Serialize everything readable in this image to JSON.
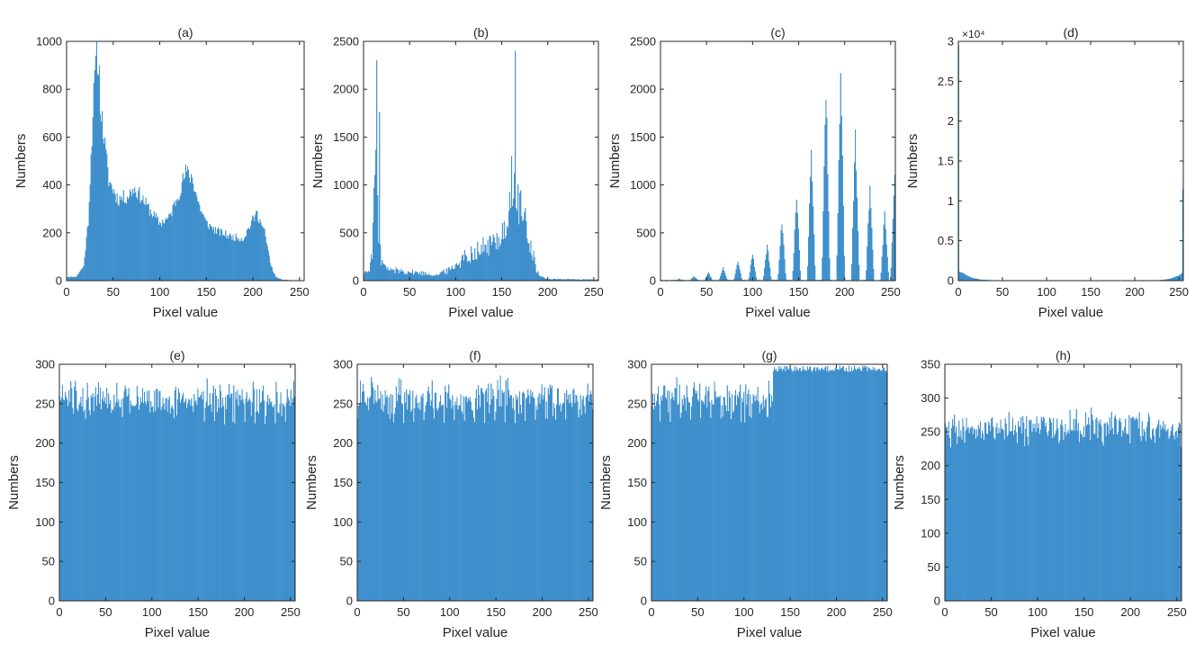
{
  "figure": {
    "series_color": "#2E86C8",
    "axis_color": "#262626",
    "background": "#ffffff"
  },
  "chart_data": [
    {
      "id": "a",
      "type": "bar",
      "title": "(a)",
      "xlabel": "Pixel value",
      "ylabel": "Numbers",
      "xlim": [
        0,
        255
      ],
      "ylim": [
        0,
        1000
      ],
      "xticks": [
        0,
        50,
        100,
        150,
        200,
        250
      ],
      "xtick_labels": [
        "0",
        "50",
        "100",
        "150",
        "200",
        "250"
      ],
      "yticks": [
        0,
        200,
        400,
        600,
        800,
        1000
      ],
      "ytick_labels": [
        "0",
        "200",
        "400",
        "600",
        "800",
        "1000"
      ],
      "exponent_label": "",
      "profile": [
        [
          0,
          15
        ],
        [
          10,
          15
        ],
        [
          18,
          60
        ],
        [
          23,
          250
        ],
        [
          28,
          700
        ],
        [
          31,
          900
        ],
        [
          33,
          940
        ],
        [
          37,
          700
        ],
        [
          45,
          420
        ],
        [
          55,
          340
        ],
        [
          65,
          350
        ],
        [
          72,
          385
        ],
        [
          80,
          350
        ],
        [
          90,
          290
        ],
        [
          100,
          240
        ],
        [
          110,
          260
        ],
        [
          120,
          360
        ],
        [
          128,
          450
        ],
        [
          135,
          430
        ],
        [
          142,
          320
        ],
        [
          150,
          240
        ],
        [
          160,
          210
        ],
        [
          175,
          185
        ],
        [
          190,
          175
        ],
        [
          200,
          250
        ],
        [
          205,
          280
        ],
        [
          213,
          200
        ],
        [
          220,
          60
        ],
        [
          225,
          15
        ],
        [
          232,
          3
        ],
        [
          255,
          0
        ]
      ],
      "spikes": [
        [
          31,
          940
        ],
        [
          35,
          900
        ],
        [
          129,
          455
        ],
        [
          205,
          290
        ]
      ],
      "noise": 0.09
    },
    {
      "id": "b",
      "type": "bar",
      "title": "(b)",
      "xlabel": "Pixel value",
      "ylabel": "Numbers",
      "xlim": [
        0,
        255
      ],
      "ylim": [
        0,
        2500
      ],
      "xticks": [
        0,
        50,
        100,
        150,
        200,
        250
      ],
      "xtick_labels": [
        "0",
        "50",
        "100",
        "150",
        "200",
        "250"
      ],
      "yticks": [
        0,
        500,
        1000,
        1500,
        2000,
        2500
      ],
      "ytick_labels": [
        "0",
        "500",
        "1000",
        "1500",
        "2000",
        "2500"
      ],
      "exponent_label": "",
      "profile": [
        [
          0,
          80
        ],
        [
          5,
          100
        ],
        [
          9,
          250
        ],
        [
          11,
          900
        ],
        [
          13,
          1300
        ],
        [
          15,
          700
        ],
        [
          19,
          200
        ],
        [
          25,
          120
        ],
        [
          40,
          100
        ],
        [
          60,
          80
        ],
        [
          80,
          60
        ],
        [
          95,
          120
        ],
        [
          110,
          250
        ],
        [
          125,
          320
        ],
        [
          140,
          380
        ],
        [
          150,
          480
        ],
        [
          158,
          650
        ],
        [
          163,
          900
        ],
        [
          168,
          850
        ],
        [
          175,
          600
        ],
        [
          182,
          380
        ],
        [
          188,
          120
        ],
        [
          192,
          40
        ],
        [
          200,
          15
        ],
        [
          255,
          10
        ]
      ],
      "spikes": [
        [
          14,
          2300
        ],
        [
          17,
          1760
        ],
        [
          165,
          2400
        ],
        [
          161,
          1300
        ]
      ],
      "noise": 0.35
    },
    {
      "id": "c",
      "type": "bar",
      "title": "(c)",
      "xlabel": "Pixel value",
      "ylabel": "Numbers",
      "xlim": [
        0,
        255
      ],
      "ylim": [
        0,
        2500
      ],
      "xticks": [
        0,
        50,
        100,
        150,
        200,
        250
      ],
      "xtick_labels": [
        "0",
        "50",
        "100",
        "150",
        "200",
        "250"
      ],
      "yticks": [
        0,
        500,
        1000,
        1500,
        2000,
        2500
      ],
      "ytick_labels": [
        "0",
        "500",
        "1000",
        "1500",
        "2000",
        "2500"
      ],
      "exponent_label": "",
      "peaks": [
        [
          20,
          15
        ],
        [
          36,
          40
        ],
        [
          52,
          80
        ],
        [
          68,
          130
        ],
        [
          84,
          200
        ],
        [
          100,
          270
        ],
        [
          116,
          370
        ],
        [
          132,
          630
        ],
        [
          148,
          900
        ],
        [
          164,
          1380
        ],
        [
          180,
          2030
        ],
        [
          196,
          2260
        ],
        [
          212,
          1530
        ],
        [
          228,
          1000
        ],
        [
          244,
          700
        ],
        [
          255,
          1100
        ]
      ],
      "peak_halfwidth": 2,
      "noise": 0.15
    },
    {
      "id": "d",
      "type": "bar",
      "title": "(d)",
      "xlabel": "Pixel value",
      "ylabel": "Numbers",
      "xlim": [
        0,
        255
      ],
      "ylim": [
        0,
        30000
      ],
      "xticks": [
        0,
        50,
        100,
        150,
        200,
        250
      ],
      "xtick_labels": [
        "0",
        "50",
        "100",
        "150",
        "200",
        "250"
      ],
      "yticks": [
        0,
        5000,
        10000,
        15000,
        20000,
        25000,
        30000
      ],
      "ytick_labels": [
        "0",
        "0.5",
        "1",
        "1.5",
        "2",
        "2.5",
        "3"
      ],
      "exponent_label": "×10⁴",
      "profile": [
        [
          0,
          1200
        ],
        [
          5,
          900
        ],
        [
          10,
          600
        ],
        [
          15,
          350
        ],
        [
          25,
          120
        ],
        [
          40,
          30
        ],
        [
          60,
          8
        ],
        [
          200,
          8
        ],
        [
          230,
          60
        ],
        [
          240,
          200
        ],
        [
          250,
          600
        ],
        [
          254,
          900
        ],
        [
          255,
          1200
        ]
      ],
      "spikes": [
        [
          0,
          29500
        ],
        [
          255,
          11500
        ]
      ],
      "noise": 0.05
    },
    {
      "id": "e",
      "type": "bar",
      "title": "(e)",
      "xlabel": "Pixel value",
      "ylabel": "Numbers",
      "xlim": [
        0,
        255
      ],
      "ylim": [
        0,
        300
      ],
      "xticks": [
        0,
        50,
        100,
        150,
        200,
        250
      ],
      "xtick_labels": [
        "0",
        "50",
        "100",
        "150",
        "200",
        "250"
      ],
      "yticks": [
        0,
        50,
        100,
        150,
        200,
        250,
        300
      ],
      "ytick_labels": [
        "0",
        "50",
        "100",
        "150",
        "200",
        "250",
        "300"
      ],
      "exponent_label": "",
      "uniform": {
        "mean": 256,
        "spread": 14,
        "min": 222,
        "max": 298,
        "seed": 5
      }
    },
    {
      "id": "f",
      "type": "bar",
      "title": "(f)",
      "xlabel": "Pixel value",
      "ylabel": "Numbers",
      "xlim": [
        0,
        255
      ],
      "ylim": [
        0,
        300
      ],
      "xticks": [
        0,
        50,
        100,
        150,
        200,
        250
      ],
      "xtick_labels": [
        "0",
        "50",
        "100",
        "150",
        "200",
        "250"
      ],
      "yticks": [
        0,
        50,
        100,
        150,
        200,
        250,
        300
      ],
      "ytick_labels": [
        "0",
        "50",
        "100",
        "150",
        "200",
        "250",
        "300"
      ],
      "exponent_label": "",
      "uniform": {
        "mean": 256,
        "spread": 14,
        "min": 225,
        "max": 298,
        "seed": 6
      }
    },
    {
      "id": "g",
      "type": "bar",
      "title": "(g)",
      "xlabel": "Pixel value",
      "ylabel": "Numbers",
      "xlim": [
        0,
        255
      ],
      "ylim": [
        0,
        300
      ],
      "xticks": [
        0,
        50,
        100,
        150,
        200,
        250
      ],
      "xtick_labels": [
        "0",
        "50",
        "100",
        "150",
        "200",
        "250"
      ],
      "yticks": [
        0,
        50,
        100,
        150,
        200,
        250,
        300
      ],
      "ytick_labels": [
        "0",
        "50",
        "100",
        "150",
        "200",
        "250",
        "300"
      ],
      "exponent_label": "",
      "uniform": {
        "mean": 256,
        "spread": 14,
        "min": 226,
        "max": 298,
        "seed": 7
      }
    },
    {
      "id": "h",
      "type": "bar",
      "title": "(h)",
      "xlabel": "Pixel value",
      "ylabel": "Numbers",
      "xlim": [
        0,
        255
      ],
      "ylim": [
        0,
        350
      ],
      "xticks": [
        0,
        50,
        100,
        150,
        200,
        250
      ],
      "xtick_labels": [
        "0",
        "50",
        "100",
        "150",
        "200",
        "250"
      ],
      "yticks": [
        0,
        50,
        100,
        150,
        200,
        250,
        300,
        350
      ],
      "ytick_labels": [
        "0",
        "50",
        "100",
        "150",
        "200",
        "250",
        "300",
        "350"
      ],
      "exponent_label": "",
      "uniform": {
        "mean": 256,
        "spread": 14,
        "min": 222,
        "max": 300,
        "seed": 8
      }
    }
  ]
}
